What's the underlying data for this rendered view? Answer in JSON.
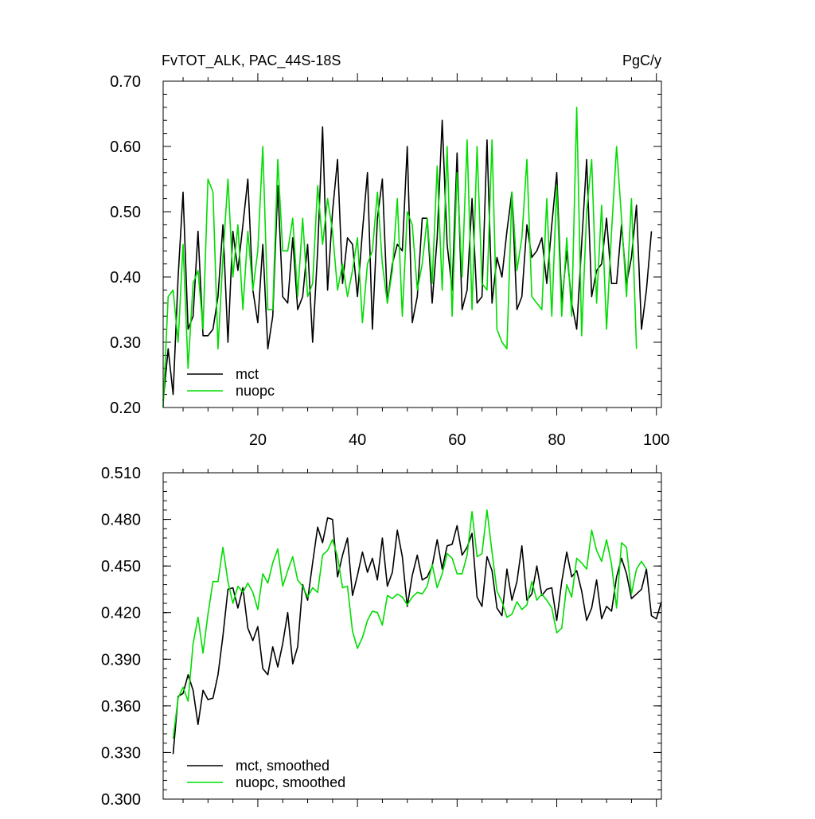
{
  "chart_data": [
    {
      "type": "line",
      "title": "FvTOT_ALK, PAC_44S-18S",
      "units_label": "PgC/y",
      "xlabel": "",
      "ylabel": "",
      "xlim": [
        1,
        101
      ],
      "ylim": [
        0.2,
        0.7
      ],
      "x_tick_labels": [
        "20",
        "40",
        "60",
        "80",
        "100"
      ],
      "y_tick_labels": [
        "0.20",
        "0.30",
        "0.40",
        "0.50",
        "0.60",
        "0.70"
      ],
      "legend_position": "bottom-left",
      "colors": {
        "mct": "#000000",
        "nuopc": "#00dd00"
      },
      "series": [
        {
          "name": "mct",
          "color": "#000000",
          "x_start": 1,
          "values": [
            0.21,
            0.29,
            0.22,
            0.4,
            0.53,
            0.32,
            0.34,
            0.47,
            0.31,
            0.31,
            0.32,
            0.37,
            0.48,
            0.3,
            0.47,
            0.41,
            0.48,
            0.55,
            0.38,
            0.33,
            0.45,
            0.29,
            0.34,
            0.54,
            0.37,
            0.36,
            0.46,
            0.35,
            0.37,
            0.45,
            0.3,
            0.44,
            0.63,
            0.38,
            0.5,
            0.58,
            0.39,
            0.46,
            0.45,
            0.37,
            0.47,
            0.56,
            0.32,
            0.49,
            0.55,
            0.36,
            0.42,
            0.45,
            0.44,
            0.6,
            0.33,
            0.37,
            0.49,
            0.49,
            0.36,
            0.46,
            0.64,
            0.45,
            0.38,
            0.59,
            0.35,
            0.38,
            0.52,
            0.36,
            0.37,
            0.61,
            0.36,
            0.43,
            0.4,
            0.47,
            0.53,
            0.35,
            0.37,
            0.48,
            0.43,
            0.44,
            0.46,
            0.39,
            0.48,
            0.56,
            0.36,
            0.44,
            0.36,
            0.32,
            0.45,
            0.58,
            0.37,
            0.41,
            0.42,
            0.49,
            0.39,
            0.39,
            0.48,
            0.39,
            0.43,
            0.51,
            0.32,
            0.38,
            0.47
          ]
        },
        {
          "name": "nuopc",
          "color": "#00dd00",
          "x_start": 1,
          "values": [
            0.2,
            0.37,
            0.38,
            0.3,
            0.45,
            0.26,
            0.39,
            0.41,
            0.32,
            0.55,
            0.53,
            0.29,
            0.43,
            0.55,
            0.4,
            0.48,
            0.35,
            0.47,
            0.38,
            0.44,
            0.6,
            0.35,
            0.35,
            0.58,
            0.44,
            0.44,
            0.49,
            0.37,
            0.49,
            0.37,
            0.39,
            0.54,
            0.45,
            0.52,
            0.47,
            0.38,
            0.42,
            0.37,
            0.41,
            0.46,
            0.33,
            0.42,
            0.44,
            0.53,
            0.42,
            0.36,
            0.41,
            0.52,
            0.34,
            0.5,
            0.48,
            0.38,
            0.42,
            0.49,
            0.39,
            0.57,
            0.38,
            0.6,
            0.34,
            0.56,
            0.4,
            0.61,
            0.35,
            0.6,
            0.39,
            0.38,
            0.61,
            0.32,
            0.3,
            0.29,
            0.53,
            0.41,
            0.46,
            0.58,
            0.37,
            0.36,
            0.35,
            0.52,
            0.34,
            0.54,
            0.34,
            0.46,
            0.34,
            0.66,
            0.31,
            0.5,
            0.58,
            0.36,
            0.51,
            0.32,
            0.47,
            0.6,
            0.49,
            0.37,
            0.52,
            0.29
          ]
        }
      ]
    },
    {
      "type": "line",
      "title": "",
      "xlabel": "",
      "ylabel": "",
      "xlim": [
        1,
        101
      ],
      "ylim": [
        0.3,
        0.51
      ],
      "y_tick_labels": [
        "0.300",
        "0.330",
        "0.360",
        "0.390",
        "0.420",
        "0.450",
        "0.480",
        "0.510"
      ],
      "legend_position": "bottom-left",
      "series": [
        {
          "name": "mct, smoothed",
          "color": "#000000",
          "x_start": 3,
          "values": [
            0.329,
            0.366,
            0.368,
            0.38,
            0.37,
            0.348,
            0.37,
            0.364,
            0.365,
            0.38,
            0.405,
            0.435,
            0.436,
            0.423,
            0.436,
            0.41,
            0.402,
            0.411,
            0.384,
            0.38,
            0.398,
            0.385,
            0.4,
            0.42,
            0.387,
            0.398,
            0.438,
            0.428,
            0.452,
            0.475,
            0.465,
            0.481,
            0.48,
            0.443,
            0.457,
            0.468,
            0.431,
            0.444,
            0.459,
            0.446,
            0.455,
            0.441,
            0.468,
            0.437,
            0.446,
            0.473,
            0.456,
            0.424,
            0.444,
            0.457,
            0.441,
            0.443,
            0.45,
            0.467,
            0.448,
            0.463,
            0.464,
            0.476,
            0.457,
            0.462,
            0.471,
            0.43,
            0.424,
            0.456,
            0.447,
            0.423,
            0.418,
            0.448,
            0.428,
            0.44,
            0.463,
            0.428,
            0.432,
            0.45,
            0.431,
            0.435,
            0.436,
            0.415,
            0.44,
            0.459,
            0.443,
            0.447,
            0.434,
            0.415,
            0.423,
            0.441,
            0.416,
            0.424,
            0.421,
            0.443,
            0.455,
            0.445,
            0.429,
            0.432,
            0.435,
            0.448,
            0.418,
            0.416,
            0.427
          ]
        },
        {
          "name": "nuopc, smoothed",
          "color": "#00dd00",
          "x_start": 3,
          "values": [
            0.339,
            0.365,
            0.372,
            0.363,
            0.4,
            0.417,
            0.394,
            0.419,
            0.44,
            0.44,
            0.462,
            0.44,
            0.426,
            0.437,
            0.433,
            0.439,
            0.433,
            0.422,
            0.445,
            0.439,
            0.452,
            0.461,
            0.437,
            0.447,
            0.456,
            0.441,
            0.437,
            0.43,
            0.436,
            0.433,
            0.457,
            0.46,
            0.467,
            0.456,
            0.436,
            0.437,
            0.408,
            0.397,
            0.404,
            0.415,
            0.421,
            0.42,
            0.412,
            0.431,
            0.429,
            0.432,
            0.43,
            0.425,
            0.43,
            0.433,
            0.432,
            0.437,
            0.451,
            0.436,
            0.445,
            0.458,
            0.455,
            0.445,
            0.445,
            0.457,
            0.485,
            0.456,
            0.458,
            0.486,
            0.459,
            0.434,
            0.427,
            0.417,
            0.419,
            0.427,
            0.422,
            0.425,
            0.44,
            0.428,
            0.432,
            0.428,
            0.423,
            0.407,
            0.41,
            0.438,
            0.43,
            0.455,
            0.452,
            0.448,
            0.473,
            0.46,
            0.453,
            0.467,
            0.451,
            0.423,
            0.465,
            0.462,
            0.432,
            0.448,
            0.453,
            0.448
          ]
        }
      ]
    }
  ]
}
